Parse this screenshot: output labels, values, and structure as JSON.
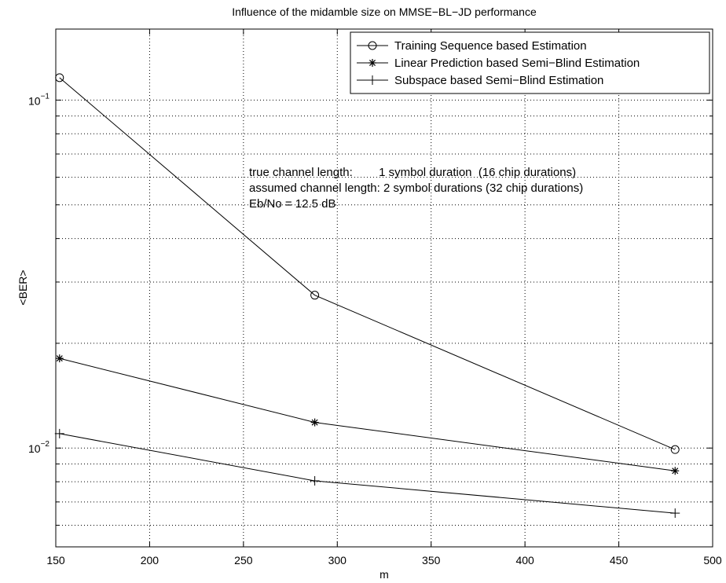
{
  "chart_data": {
    "type": "line",
    "title": "Influence of the midamble size on MMSE−BL−JD performance",
    "xlabel": "m",
    "ylabel": "<BER>",
    "xlim": [
      150,
      500
    ],
    "ylim": [
      0.0052,
      0.16
    ],
    "yscale": "log",
    "grid": true,
    "legend_position": "top-right",
    "x_ticks": [
      150,
      200,
      250,
      300,
      350,
      400,
      450,
      500
    ],
    "y_tick_labels": [
      {
        "value": 0.1,
        "base": "10",
        "exp": "−1"
      },
      {
        "value": 0.01,
        "base": "10",
        "exp": "−2"
      }
    ],
    "annotations": [
      "true channel length:        1 symbol duration  (16 chip durations)",
      "assumed channel length: 2 symbol durations (32 chip durations)",
      "Eb/No = 12.5 dB"
    ],
    "series": [
      {
        "name": "Training Sequence based Estimation",
        "marker": "circle",
        "x": [
          152,
          288,
          480
        ],
        "y": [
          0.116,
          0.0275,
          0.0099
        ]
      },
      {
        "name": "Linear Prediction based Semi−Blind Estimation",
        "marker": "star",
        "x": [
          152,
          288,
          480
        ],
        "y": [
          0.0181,
          0.01185,
          0.0086
        ]
      },
      {
        "name": "Subspace based Semi−Blind Estimation",
        "marker": "plus",
        "x": [
          152,
          288,
          480
        ],
        "y": [
          0.011,
          0.00805,
          0.0065
        ]
      }
    ]
  }
}
